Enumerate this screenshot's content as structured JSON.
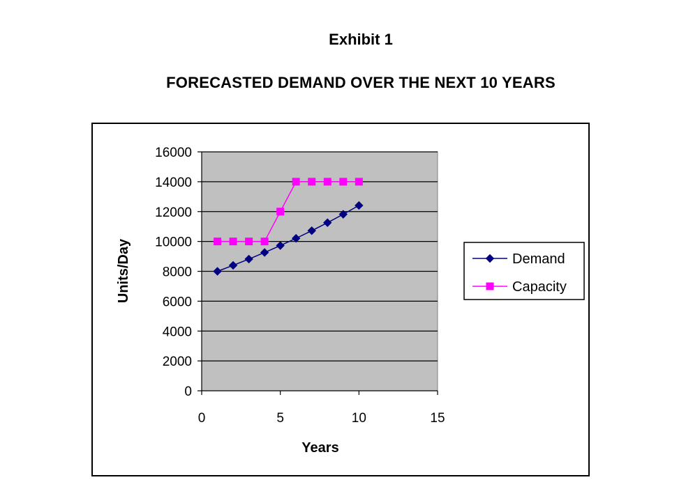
{
  "exhibit_title": "Exhibit 1",
  "main_title": "FORECASTED DEMAND OVER THE NEXT 10 YEARS",
  "chart_data": {
    "type": "line",
    "title": "FORECASTED DEMAND OVER THE NEXT 10 YEARS",
    "xlabel": "Years",
    "ylabel": "Units/Day",
    "xlim": [
      0,
      15
    ],
    "ylim": [
      0,
      16000
    ],
    "xticks": [
      0,
      5,
      10,
      15
    ],
    "yticks": [
      0,
      2000,
      4000,
      6000,
      8000,
      10000,
      12000,
      14000,
      16000
    ],
    "grid": "horizontal",
    "plot_background": "#c0c0c0",
    "legend_position": "right",
    "series": [
      {
        "name": "Demand",
        "color": "#000080",
        "marker": "diamond",
        "x": [
          1,
          2,
          3,
          4,
          5,
          6,
          7,
          8,
          9,
          10
        ],
        "values": [
          8000,
          8400,
          8820,
          9261,
          9724,
          10210,
          10721,
          11257,
          11820,
          12411
        ]
      },
      {
        "name": "Capacity",
        "color": "#ff00ff",
        "marker": "square",
        "x": [
          1,
          2,
          3,
          4,
          5,
          6,
          7,
          8,
          9,
          10
        ],
        "values": [
          10000,
          10000,
          10000,
          10000,
          12000,
          14000,
          14000,
          14000,
          14000,
          14000
        ]
      }
    ]
  }
}
